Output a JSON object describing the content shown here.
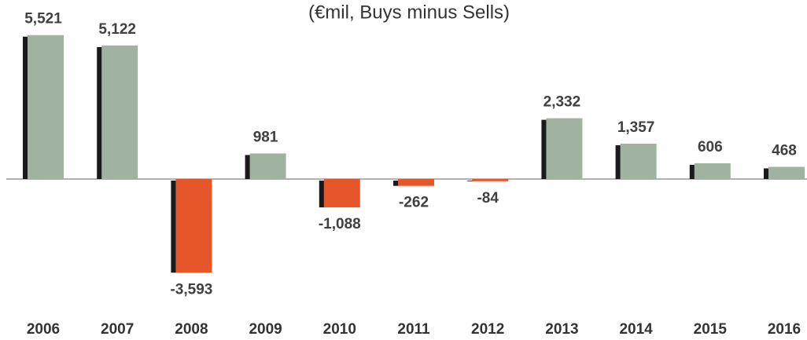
{
  "chart_data": {
    "type": "bar",
    "subtitle": "(€mil, Buys minus Sells)",
    "categories": [
      "2006",
      "2007",
      "2008",
      "2009",
      "2010",
      "2011",
      "2012",
      "2013",
      "2014",
      "2015",
      "2016"
    ],
    "values": [
      5521,
      5122,
      -3593,
      981,
      -1088,
      -262,
      -84,
      2332,
      1357,
      606,
      468
    ],
    "value_labels": [
      "5,521",
      "5,122",
      "-3,593",
      "981",
      "-1,088",
      "-262",
      "-84",
      "2,332",
      "1,357",
      "606",
      "468"
    ],
    "color": "#9fb3a0",
    "negative_color": "#e5572b"
  }
}
